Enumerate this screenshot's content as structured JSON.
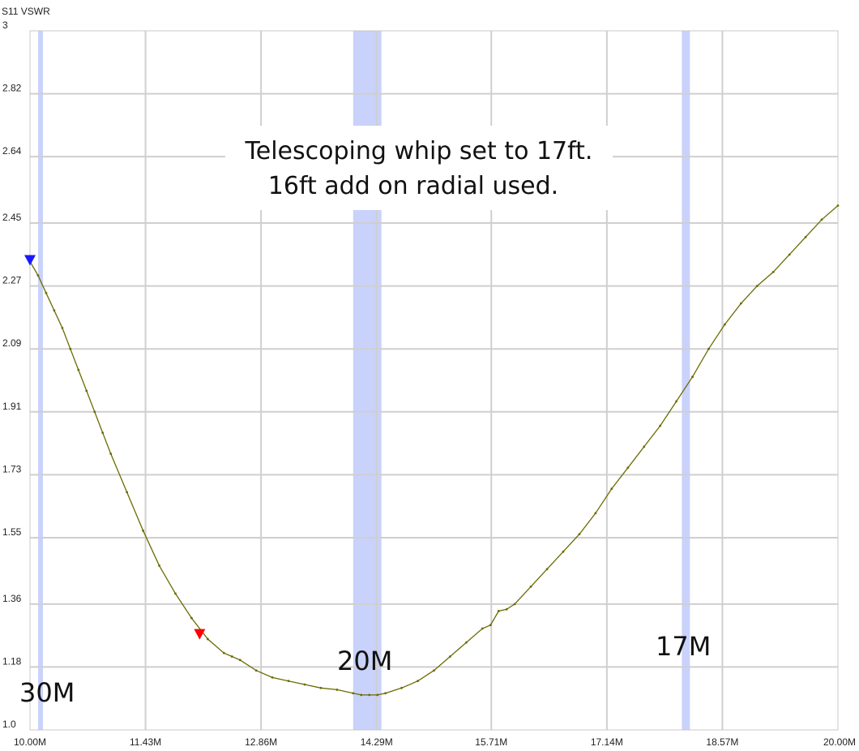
{
  "chart_data": {
    "type": "line",
    "title": "S11 VSWR",
    "xlabel": "",
    "ylabel": "",
    "xlim": [
      10.0,
      20.0
    ],
    "ylim": [
      1.0,
      3.0
    ],
    "x_unit": "MHz",
    "x_ticks": [
      {
        "value": 10.0,
        "label": "10.00M"
      },
      {
        "value": 11.43,
        "label": "11.43M"
      },
      {
        "value": 12.86,
        "label": "12.86M"
      },
      {
        "value": 14.29,
        "label": "14.29M"
      },
      {
        "value": 15.71,
        "label": "15.71M"
      },
      {
        "value": 17.14,
        "label": "17.14M"
      },
      {
        "value": 18.57,
        "label": "18.57M"
      },
      {
        "value": 20.0,
        "label": "20.00M"
      }
    ],
    "y_ticks": [
      {
        "value": 1.0,
        "label": "1.0"
      },
      {
        "value": 1.18,
        "label": "1.18"
      },
      {
        "value": 1.36,
        "label": "1.36"
      },
      {
        "value": 1.55,
        "label": "1.55"
      },
      {
        "value": 1.73,
        "label": "1.73"
      },
      {
        "value": 1.91,
        "label": "1.91"
      },
      {
        "value": 2.09,
        "label": "2.09"
      },
      {
        "value": 2.27,
        "label": "2.27"
      },
      {
        "value": 2.45,
        "label": "2.45"
      },
      {
        "value": 2.64,
        "label": "2.64"
      },
      {
        "value": 2.82,
        "label": "2.82"
      },
      {
        "value": 3.0,
        "label": "3"
      }
    ],
    "grid": true,
    "series": [
      {
        "color": "#6b6b00",
        "x": [
          10.0,
          10.1,
          10.2,
          10.3,
          10.4,
          10.5,
          10.6,
          10.7,
          10.8,
          10.9,
          11.0,
          11.2,
          11.4,
          11.6,
          11.8,
          12.0,
          12.2,
          12.4,
          12.5,
          12.6,
          12.8,
          13.0,
          13.2,
          13.4,
          13.6,
          13.8,
          14.0,
          14.1,
          14.2,
          14.3,
          14.4,
          14.6,
          14.8,
          15.0,
          15.2,
          15.4,
          15.6,
          15.7,
          15.8,
          15.9,
          16.0,
          16.2,
          16.4,
          16.6,
          16.8,
          17.0,
          17.2,
          17.4,
          17.6,
          17.8,
          18.0,
          18.2,
          18.4,
          18.6,
          18.8,
          19.0,
          19.2,
          19.4,
          19.6,
          19.8,
          20.0
        ],
        "values": [
          2.34,
          2.3,
          2.25,
          2.2,
          2.15,
          2.09,
          2.03,
          1.97,
          1.91,
          1.85,
          1.79,
          1.68,
          1.57,
          1.47,
          1.39,
          1.32,
          1.26,
          1.22,
          1.21,
          1.2,
          1.17,
          1.15,
          1.14,
          1.13,
          1.12,
          1.115,
          1.105,
          1.1,
          1.1,
          1.1,
          1.105,
          1.12,
          1.14,
          1.17,
          1.21,
          1.25,
          1.29,
          1.3,
          1.34,
          1.345,
          1.36,
          1.41,
          1.46,
          1.51,
          1.56,
          1.62,
          1.69,
          1.75,
          1.81,
          1.87,
          1.94,
          2.01,
          2.09,
          2.16,
          2.22,
          2.27,
          2.31,
          2.36,
          2.41,
          2.46,
          2.5
        ]
      }
    ],
    "markers": [
      {
        "x": 10.0,
        "y": 2.34,
        "color": "#1a1aff"
      },
      {
        "x": 12.1,
        "y": 1.27,
        "color": "#ff0000"
      }
    ],
    "bands": [
      {
        "label": "30M",
        "x_start": 10.1,
        "x_end": 10.15,
        "color": "#c9d2fb"
      },
      {
        "label": "20M",
        "x_start": 14.0,
        "x_end": 14.35,
        "color": "#c9d2fb"
      },
      {
        "label": "17M",
        "x_start": 18.068,
        "x_end": 18.168,
        "color": "#c9d2fb"
      }
    ],
    "annotation": {
      "lines": [
        "Telescoping whip set to 17ft.",
        "16ft add on radial used."
      ]
    }
  }
}
